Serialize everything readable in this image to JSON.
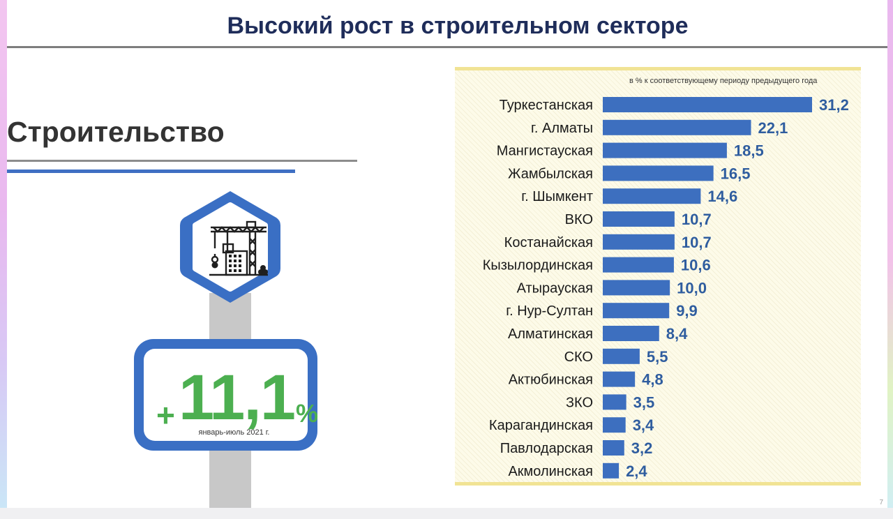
{
  "slide": {
    "title": "Высокий рост в строительном секторе",
    "section_title": "Строительство",
    "page_number": "7"
  },
  "kpi": {
    "sign": "+",
    "value": "11,1",
    "unit": "%",
    "period": "январь-июль 2021 г.",
    "icon": "construction-site-icon",
    "accent_color": "#3a6fc4",
    "value_color": "#4caf50"
  },
  "chart_data": {
    "type": "bar",
    "orientation": "horizontal",
    "subtitle": "в % к соответствующему периоду предыдущего года",
    "categories": [
      "Туркестанская",
      "г. Алматы",
      "Мангистауская",
      "Жамбылская",
      "г. Шымкент",
      "ВКО",
      "Костанайская",
      "Кызылординская",
      "Атырауская",
      "г. Нур-Султан",
      "Алматинская",
      "СКО",
      "Актюбинская",
      "ЗКО",
      "Карагандинская",
      "Павлодарская",
      "Акмолинская"
    ],
    "values": [
      31.2,
      22.1,
      18.5,
      16.5,
      14.6,
      10.7,
      10.7,
      10.6,
      10.0,
      9.9,
      8.4,
      5.5,
      4.8,
      3.5,
      3.4,
      3.2,
      2.4
    ],
    "value_labels": [
      "31,2",
      "22,1",
      "18,5",
      "16,5",
      "14,6",
      "10,7",
      "10,7",
      "10,6",
      "10,0",
      "9,9",
      "8,4",
      "5,5",
      "4,8",
      "3,5",
      "3,4",
      "3,2",
      "2,4"
    ],
    "bar_color": "#3d6fbf",
    "label_color": "#2f5d9f",
    "xlim": [
      0,
      31.2
    ],
    "grid": false,
    "legend": "none"
  }
}
